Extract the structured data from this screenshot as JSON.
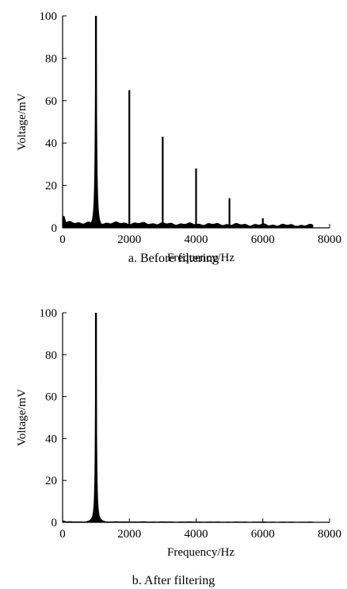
{
  "chart_data": [
    {
      "type": "line",
      "caption": "a. Before filtering",
      "xlabel": "Frequency/Hz",
      "ylabel": "Voltage/mV",
      "xlim": [
        0,
        8000
      ],
      "ylim": [
        0,
        100
      ],
      "xticks": [
        0,
        2000,
        4000,
        6000,
        8000
      ],
      "yticks": [
        0,
        20,
        40,
        60,
        80,
        100
      ],
      "grid": false,
      "data_end_x": 7500,
      "noise_floor": 2.5,
      "peaks": [
        {
          "x": 1000,
          "y": 100
        },
        {
          "x": 2000,
          "y": 65
        },
        {
          "x": 3000,
          "y": 43
        },
        {
          "x": 4000,
          "y": 28
        },
        {
          "x": 5000,
          "y": 14
        },
        {
          "x": 6000,
          "y": 4.5
        },
        {
          "x": 7000,
          "y": 1
        }
      ]
    },
    {
      "type": "line",
      "caption": "b. After filtering",
      "xlabel": "Frequency/Hz",
      "ylabel": "Voltage/mV",
      "xlim": [
        0,
        8000
      ],
      "ylim": [
        0,
        100
      ],
      "xticks": [
        0,
        2000,
        4000,
        6000,
        8000
      ],
      "yticks": [
        0,
        20,
        40,
        60,
        80,
        100
      ],
      "grid": false,
      "data_end_x": 7500,
      "noise_floor": 0.3,
      "peaks": [
        {
          "x": 1000,
          "y": 100
        }
      ]
    }
  ]
}
